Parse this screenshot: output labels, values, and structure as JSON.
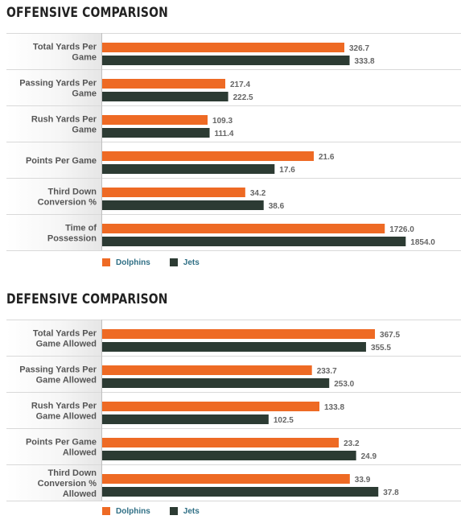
{
  "colors": {
    "dolphins": "#ee6a24",
    "jets": "#2c3b33",
    "label_bg": "#e6e6e6",
    "row_divider": "#d9d9d9",
    "value_text": "#666666",
    "category_text": "#555555"
  },
  "chart_data": [
    {
      "type": "bar",
      "orientation": "horizontal",
      "title": "OFFENSIVE COMPARISON",
      "categories": [
        "Total Yards Per Game",
        "Passing Yards Per Game",
        "Rush Yards Per Game",
        "Points Per Game",
        "Third Down Conversion %",
        "Time of Possession"
      ],
      "category_lines": [
        [
          "Total Yards Per",
          "Game"
        ],
        [
          "Passing Yards Per",
          "Game"
        ],
        [
          "Rush Yards Per",
          "Game"
        ],
        [
          "Points Per Game"
        ],
        [
          "Third Down",
          "Conversion %"
        ],
        [
          "Time of",
          "Possession"
        ]
      ],
      "series": [
        {
          "name": "Dolphins",
          "values": [
            "326.7",
            "217.4",
            "109.3",
            "21.6",
            "34.2",
            "1726.0"
          ],
          "color": "#ee6a24"
        },
        {
          "name": "Jets",
          "values": [
            "333.8",
            "222.5",
            "111.4",
            "17.6",
            "38.6",
            "1854.0"
          ],
          "color": "#2c3b33"
        }
      ],
      "legend": "bottom-left"
    },
    {
      "type": "bar",
      "orientation": "horizontal",
      "title": "DEFENSIVE COMPARISON",
      "categories": [
        "Total Yards Per Game Allowed",
        "Passing Yards Per Game Allowed",
        "Rush Yards Per Game Allowed",
        "Points Per Game Allowed",
        "Third Down Conversion % Allowed"
      ],
      "category_lines": [
        [
          "Total Yards Per",
          "Game Allowed"
        ],
        [
          "Passing Yards Per",
          "Game Allowed"
        ],
        [
          "Rush Yards Per",
          "Game Allowed"
        ],
        [
          "Points Per Game",
          "Allowed"
        ],
        [
          "Third Down",
          "Conversion %",
          "Allowed"
        ]
      ],
      "series": [
        {
          "name": "Dolphins",
          "values": [
            "367.5",
            "233.7",
            "133.8",
            "23.2",
            "33.9"
          ],
          "color": "#ee6a24"
        },
        {
          "name": "Jets",
          "values": [
            "355.5",
            "253.0",
            "102.5",
            "24.9",
            "37.8"
          ],
          "color": "#2c3b33"
        }
      ],
      "legend": "bottom-left"
    }
  ]
}
